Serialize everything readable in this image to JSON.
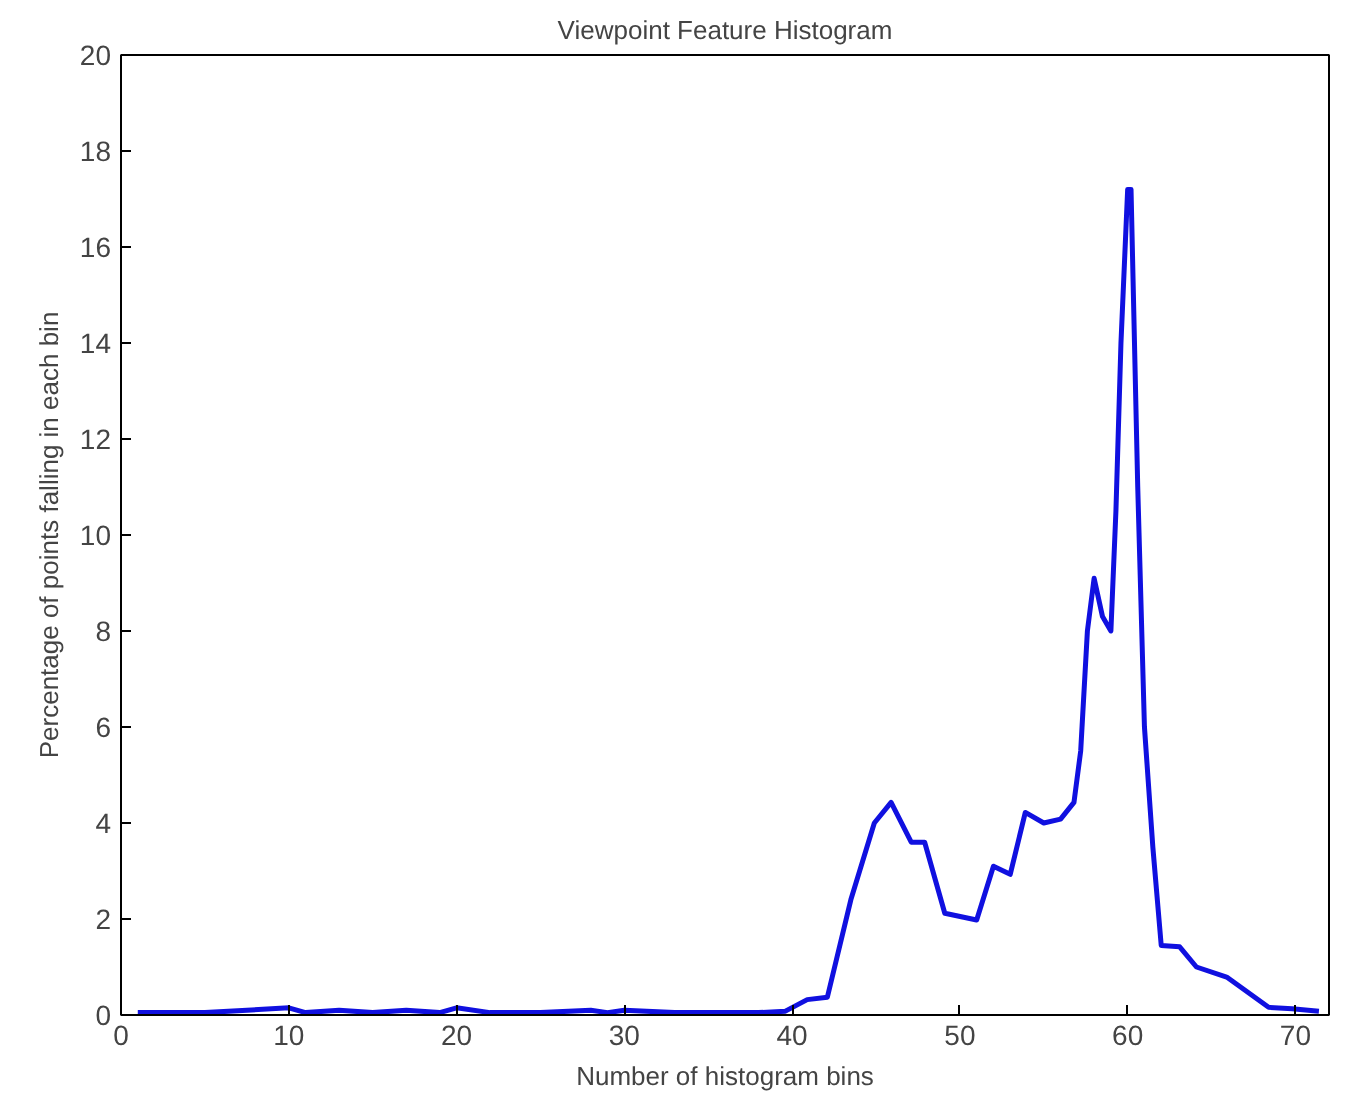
{
  "chart_data": {
    "type": "line",
    "title": "Viewpoint Feature Histogram",
    "xlabel": "Number of histogram bins",
    "ylabel": "Percentage of points falling in each bin",
    "xlim": [
      0,
      72
    ],
    "ylim": [
      0,
      20
    ],
    "xticks": [
      0,
      10,
      20,
      30,
      40,
      50,
      60,
      70
    ],
    "yticks": [
      0,
      2,
      4,
      6,
      8,
      10,
      12,
      14,
      16,
      18,
      20
    ],
    "grid": false,
    "marker": "none",
    "line_style": "solid",
    "series": [
      {
        "color": "#1010e0",
        "x": [
          1,
          5,
          10,
          11,
          13,
          15,
          17,
          19,
          20,
          22,
          25,
          28,
          29,
          30,
          33,
          37,
          38,
          39.6,
          40.9,
          42.1,
          43.5,
          44.9,
          45.9,
          47.1,
          47.9,
          49.1,
          51,
          52,
          53,
          53.9,
          55,
          56,
          56.8,
          57.2,
          57.6,
          58,
          58.5,
          59,
          59.3,
          59.6,
          60,
          60.2,
          60.6,
          61,
          61.5,
          62,
          63.1,
          64.1,
          65.9,
          68.4,
          69.8,
          71.4
        ],
        "values": [
          0.05,
          0.05,
          0.15,
          0.05,
          0.1,
          0.05,
          0.1,
          0.05,
          0.15,
          0.05,
          0.05,
          0.1,
          0.05,
          0.1,
          0.05,
          0.05,
          0.05,
          0.08,
          0.32,
          0.37,
          2.4,
          4.0,
          4.43,
          3.6,
          3.6,
          2.12,
          1.98,
          3.1,
          2.93,
          4.22,
          4.0,
          4.08,
          4.43,
          5.5,
          8.0,
          9.1,
          8.3,
          8.0,
          10.5,
          14,
          17.2,
          17.2,
          11,
          6,
          3.5,
          1.45,
          1.42,
          1.0,
          0.79,
          0.16,
          0.13,
          0.08
        ]
      }
    ]
  }
}
